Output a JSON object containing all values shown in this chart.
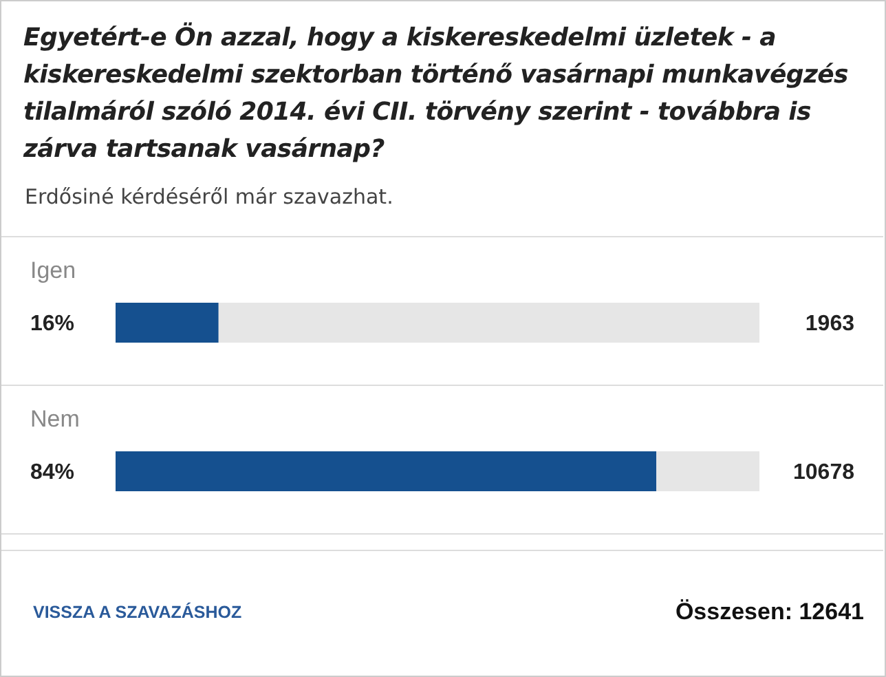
{
  "chart_data": {
    "type": "bar",
    "orientation": "horizontal",
    "stacked": true,
    "title": "Egyetért-e Ön azzal, hogy a kiskereskedelmi üzletek - a kiskereskedelmi szektorban történő vasárnapi munkavégzés tilalmáról szóló 2014. évi CII. törvény szerint - továbbra is zárva tartsanak vasárnap?",
    "subtitle": "Erdősiné kérdéséről már szavazhat.",
    "categories": [
      "Igen",
      "Nem"
    ],
    "series": [
      {
        "color": "#15508f",
        "values": [
          16,
          84
        ],
        "value_labels": [
          "16%",
          "84%"
        ]
      },
      {
        "color": "#e6e6e6",
        "values": [
          84,
          16
        ]
      }
    ],
    "xlim": [
      0,
      100
    ],
    "annotations": [
      "1963",
      "10678",
      "VISSZA A SZAVAZÁSHOZ",
      "Összesen: 12641"
    ]
  }
}
